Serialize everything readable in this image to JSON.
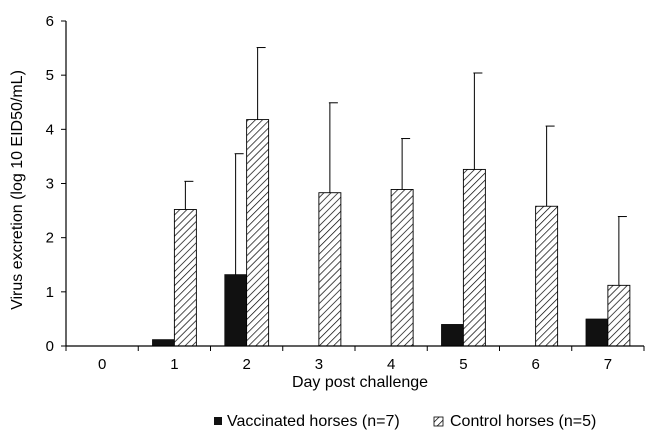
{
  "chart_data": {
    "type": "bar",
    "title": "",
    "xlabel": "Day post challenge",
    "ylabel": "Virus excretion (log 10 EID50/mL)",
    "ylim": [
      0,
      6
    ],
    "yticks": [
      "0",
      "1",
      "2",
      "3",
      "4",
      "5",
      "6"
    ],
    "categories": [
      "0",
      "1",
      "2",
      "3",
      "4",
      "5",
      "6",
      "7"
    ],
    "series": [
      {
        "name": "Vaccinated horses (n=7)",
        "fill": "solid",
        "color": "#111111",
        "values": [
          0,
          0.12,
          1.32,
          0,
          0,
          0.4,
          0,
          0.5
        ],
        "error": [
          0,
          0,
          2.23,
          0,
          0,
          0,
          0,
          0
        ]
      },
      {
        "name": "Control horses (n=5)",
        "fill": "hatched",
        "color": "#000000",
        "values": [
          0,
          2.52,
          4.18,
          2.83,
          2.89,
          3.26,
          2.58,
          1.12
        ],
        "error": [
          0,
          0.52,
          1.33,
          1.66,
          0.94,
          1.78,
          1.48,
          1.27
        ]
      }
    ],
    "legend": "bottom",
    "grid": false
  }
}
